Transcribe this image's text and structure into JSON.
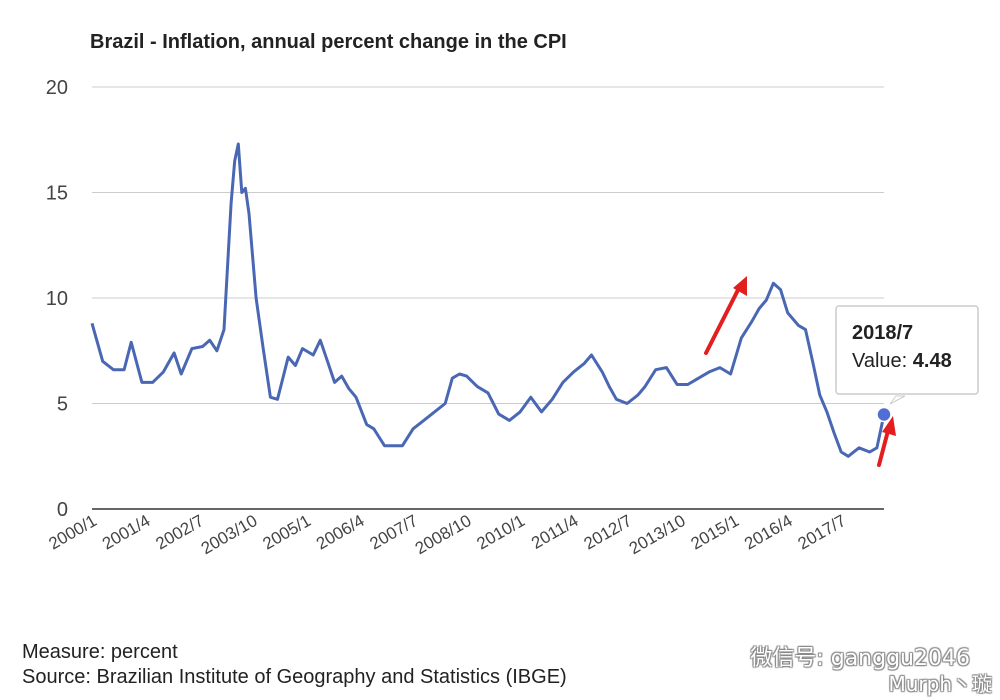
{
  "chart_data": {
    "type": "line",
    "title": "Brazil - Inflation, annual percent change in the CPI",
    "xlabel": "",
    "ylabel": "",
    "ylim": [
      0,
      20
    ],
    "yticks": [
      "0",
      "5",
      "10",
      "15",
      "20"
    ],
    "xticks": [
      "2000/1",
      "2001/4",
      "2002/7",
      "2003/10",
      "2005/1",
      "2006/4",
      "2007/7",
      "2008/10",
      "2010/1",
      "2011/4",
      "2012/7",
      "2013/10",
      "2015/1",
      "2016/4",
      "2017/7"
    ],
    "grid": true,
    "legend": "none",
    "line_color": "#4a67b4",
    "marker_color": "#4f6fd6",
    "series": [
      {
        "points": [
          [
            "2000/1",
            8.8
          ],
          [
            "2000/4",
            7.0
          ],
          [
            "2000/7",
            6.6
          ],
          [
            "2000/10",
            6.6
          ],
          [
            "2000/12",
            7.9
          ],
          [
            "2001/3",
            6.0
          ],
          [
            "2001/6",
            6.0
          ],
          [
            "2001/9",
            6.5
          ],
          [
            "2001/12",
            7.4
          ],
          [
            "2002/2",
            6.4
          ],
          [
            "2002/5",
            7.6
          ],
          [
            "2002/8",
            7.7
          ],
          [
            "2002/10",
            8.0
          ],
          [
            "2002/12",
            7.5
          ],
          [
            "2003/2",
            8.5
          ],
          [
            "2003/4",
            14.5
          ],
          [
            "2003/5",
            16.5
          ],
          [
            "2003/6",
            17.3
          ],
          [
            "2003/7",
            15.0
          ],
          [
            "2003/8",
            15.2
          ],
          [
            "2003/9",
            14.0
          ],
          [
            "2003/11",
            10.0
          ],
          [
            "2004/1",
            7.6
          ],
          [
            "2004/3",
            5.3
          ],
          [
            "2004/5",
            5.2
          ],
          [
            "2004/8",
            7.2
          ],
          [
            "2004/10",
            6.8
          ],
          [
            "2004/12",
            7.6
          ],
          [
            "2005/3",
            7.3
          ],
          [
            "2005/5",
            8.0
          ],
          [
            "2005/7",
            7.0
          ],
          [
            "2005/9",
            6.0
          ],
          [
            "2005/11",
            6.3
          ],
          [
            "2006/1",
            5.7
          ],
          [
            "2006/3",
            5.3
          ],
          [
            "2006/6",
            4.0
          ],
          [
            "2006/8",
            3.8
          ],
          [
            "2006/11",
            3.0
          ],
          [
            "2007/1",
            3.0
          ],
          [
            "2007/4",
            3.0
          ],
          [
            "2007/7",
            3.8
          ],
          [
            "2007/10",
            4.2
          ],
          [
            "2008/1",
            4.6
          ],
          [
            "2008/4",
            5.0
          ],
          [
            "2008/6",
            6.2
          ],
          [
            "2008/8",
            6.4
          ],
          [
            "2008/10",
            6.3
          ],
          [
            "2009/1",
            5.8
          ],
          [
            "2009/4",
            5.5
          ],
          [
            "2009/7",
            4.5
          ],
          [
            "2009/10",
            4.2
          ],
          [
            "2010/1",
            4.6
          ],
          [
            "2010/4",
            5.3
          ],
          [
            "2010/7",
            4.6
          ],
          [
            "2010/10",
            5.2
          ],
          [
            "2011/1",
            6.0
          ],
          [
            "2011/4",
            6.5
          ],
          [
            "2011/7",
            6.9
          ],
          [
            "2011/9",
            7.3
          ],
          [
            "2011/12",
            6.5
          ],
          [
            "2012/2",
            5.8
          ],
          [
            "2012/4",
            5.2
          ],
          [
            "2012/7",
            5.0
          ],
          [
            "2012/10",
            5.4
          ],
          [
            "2012/12",
            5.8
          ],
          [
            "2013/3",
            6.6
          ],
          [
            "2013/6",
            6.7
          ],
          [
            "2013/9",
            5.9
          ],
          [
            "2013/12",
            5.9
          ],
          [
            "2014/3",
            6.2
          ],
          [
            "2014/6",
            6.5
          ],
          [
            "2014/9",
            6.7
          ],
          [
            "2014/12",
            6.4
          ],
          [
            "2015/3",
            8.1
          ],
          [
            "2015/6",
            8.9
          ],
          [
            "2015/8",
            9.5
          ],
          [
            "2015/10",
            9.9
          ],
          [
            "2015/12",
            10.7
          ],
          [
            "2016/2",
            10.4
          ],
          [
            "2016/4",
            9.3
          ],
          [
            "2016/7",
            8.7
          ],
          [
            "2016/9",
            8.5
          ],
          [
            "2016/11",
            7.0
          ],
          [
            "2017/1",
            5.4
          ],
          [
            "2017/3",
            4.6
          ],
          [
            "2017/5",
            3.6
          ],
          [
            "2017/7",
            2.7
          ],
          [
            "2017/9",
            2.5
          ],
          [
            "2017/12",
            2.9
          ],
          [
            "2018/3",
            2.7
          ],
          [
            "2018/5",
            2.9
          ],
          [
            "2018/7",
            4.48
          ]
        ]
      }
    ]
  },
  "tooltip": {
    "date": "2018/7",
    "value_label": "Value: ",
    "value": "4.48"
  },
  "footer": {
    "measure": "Measure: percent",
    "source": "Source: Brazilian Institute of Geography and Statistics (IBGE)"
  },
  "watermark": {
    "wechat": "微信号: ganggu2046",
    "weibo": "Murph丶璇"
  }
}
